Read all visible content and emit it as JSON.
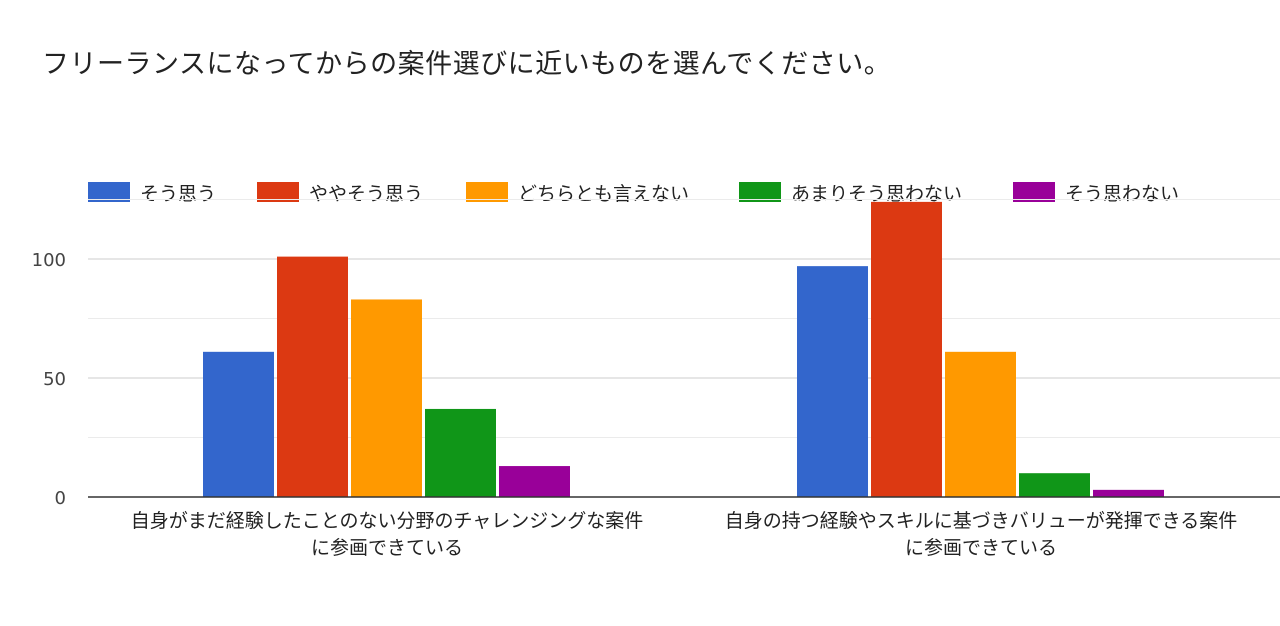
{
  "chart_data": {
    "type": "bar",
    "title": "フリーランスになってからの案件選びに近いものを選んでください。",
    "categories": [
      [
        "自身がまだ経験したことのない分野のチャレンジングな案件",
        "に参画できている"
      ],
      [
        "自身の持つ経験やスキルに基づきバリューが発揮できる案件",
        "に参画できている"
      ]
    ],
    "series": [
      {
        "name": "そう思う",
        "color": "#3366cc",
        "values": [
          61,
          97
        ]
      },
      {
        "name": "ややそう思う",
        "color": "#dc3912",
        "values": [
          101,
          124
        ]
      },
      {
        "name": "どちらとも言えない",
        "color": "#ff9900",
        "values": [
          83,
          61
        ]
      },
      {
        "name": "あまりそう思わない",
        "color": "#109618",
        "values": [
          37,
          10
        ]
      },
      {
        "name": "そう思わない",
        "color": "#990099",
        "values": [
          13,
          3
        ]
      }
    ],
    "yticks": [
      0,
      50,
      100
    ],
    "ylim": [
      0,
      125
    ],
    "grid": true,
    "legend_position": "top"
  }
}
